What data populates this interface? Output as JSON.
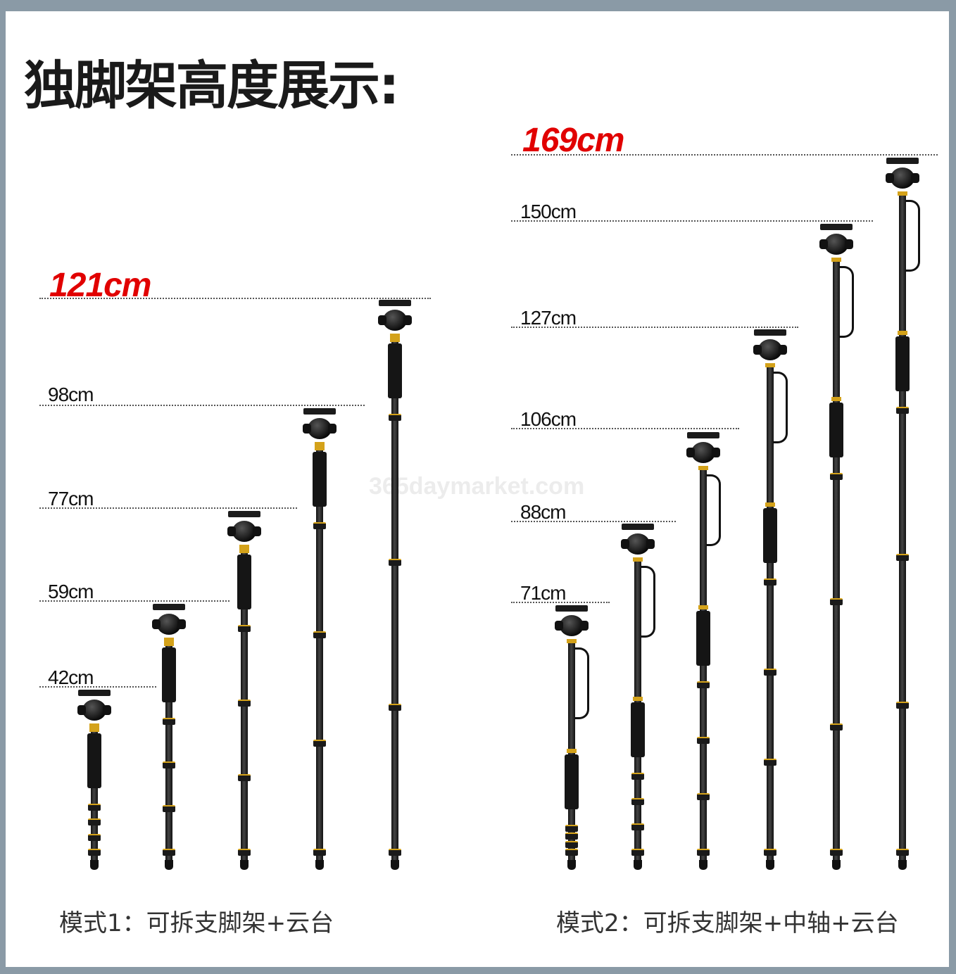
{
  "title": "独脚架高度展示:",
  "watermark": "365daymarket.com",
  "mode1": {
    "max_label": "121cm",
    "labels": [
      "98cm",
      "77cm",
      "59cm",
      "42cm"
    ],
    "caption": "模式1：可拆支脚架+云台"
  },
  "mode2": {
    "max_label": "169cm",
    "labels": [
      "150cm",
      "127cm",
      "106cm",
      "88cm",
      "71cm"
    ],
    "caption": "模式2：可拆支脚架+中轴+云台"
  },
  "colors": {
    "highlight": "#e10000",
    "accent_gold": "#d4a21a",
    "frame": "#8a9aa6"
  }
}
